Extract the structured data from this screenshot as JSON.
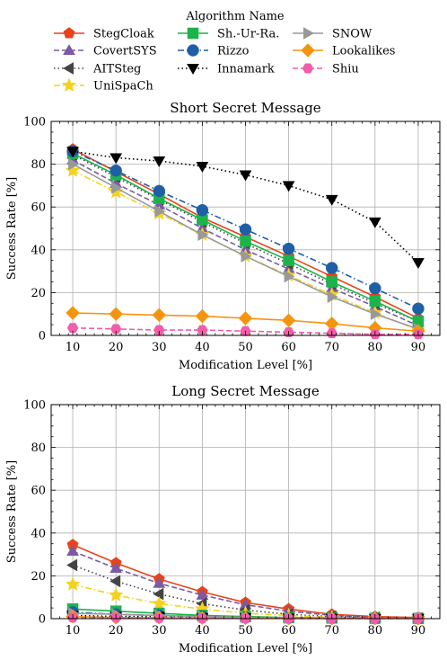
{
  "legend": {
    "title": "Algorithm Name",
    "placement": "top-center"
  },
  "chart_data": [
    {
      "type": "line",
      "title": "Short Secret Message",
      "xlabel": "Modification Level [%]",
      "ylabel": "Success Rate [%]",
      "x": [
        10,
        20,
        30,
        40,
        50,
        60,
        70,
        80,
        90
      ],
      "xlim": [
        5,
        95
      ],
      "ylim": [
        0,
        100
      ],
      "yticks": [
        0,
        20,
        40,
        60,
        80,
        100
      ],
      "grid": true,
      "series": [
        {
          "name": "StegCloak",
          "color": "#e8431a",
          "marker": "pentagon",
          "dash": "solid",
          "values": [
            87,
            76.5,
            66,
            55,
            46,
            37,
            27.5,
            18,
            8
          ]
        },
        {
          "name": "CovertSYS",
          "color": "#7b5aa6",
          "marker": "triangle-up",
          "dash": "6,3",
          "values": [
            82,
            71,
            61,
            50,
            40,
            31,
            22,
            13.5,
            4.5
          ]
        },
        {
          "name": "AITSteg",
          "color": "#444444",
          "marker": "triangle-left",
          "dash": "1.5,3",
          "values": [
            84.5,
            74,
            63.5,
            53,
            43,
            33.5,
            24,
            15,
            6.5
          ]
        },
        {
          "name": "UniSpaCh",
          "color": "#f5d21b",
          "marker": "star",
          "dash": "7,3,1.5,3",
          "values": [
            77,
            67,
            57,
            47,
            37,
            28,
            19,
            10.5,
            2.5
          ]
        },
        {
          "name": "Sh.-Ur-Ra.",
          "color": "#1cb34b",
          "marker": "square",
          "dash": "solid",
          "values": [
            85,
            75,
            64,
            54,
            44,
            35,
            25,
            16,
            6.5
          ]
        },
        {
          "name": "Rizzo",
          "color": "#1f5fa6",
          "marker": "circle",
          "dash": "7,3,1.5,3",
          "values": [
            86,
            77,
            67.5,
            58.5,
            49.5,
            40.5,
            31.5,
            22,
            12.5
          ]
        },
        {
          "name": "Innamark",
          "color": "#000000",
          "marker": "triangle-down",
          "dash": "1.5,3",
          "values": [
            86,
            83,
            81.5,
            79,
            75,
            70,
            63.5,
            53,
            34
          ]
        },
        {
          "name": "SNOW",
          "color": "#999999",
          "marker": "triangle-right",
          "dash": "solid",
          "values": [
            80,
            69,
            58,
            47,
            37,
            27.5,
            18,
            10,
            3
          ]
        },
        {
          "name": "Lookalikes",
          "color": "#f5950f",
          "marker": "diamond",
          "dash": "solid",
          "values": [
            10.5,
            10,
            9.5,
            9,
            8,
            7,
            5.5,
            3.5,
            2
          ]
        },
        {
          "name": "Shiu",
          "color": "#f25ca8",
          "marker": "hexagon",
          "dash": "6,3",
          "values": [
            3.5,
            3,
            2.5,
            2.5,
            2,
            1.5,
            1,
            0.5,
            0.5
          ]
        }
      ]
    },
    {
      "type": "line",
      "title": "Long Secret Message",
      "xlabel": "Modification Level [%]",
      "ylabel": "Success Rate [%]",
      "x": [
        10,
        20,
        30,
        40,
        50,
        60,
        70,
        80,
        90
      ],
      "xlim": [
        5,
        95
      ],
      "ylim": [
        0,
        100
      ],
      "yticks": [
        0,
        20,
        40,
        60,
        80,
        100
      ],
      "grid": true,
      "series": [
        {
          "name": "StegCloak",
          "color": "#e8431a",
          "marker": "pentagon",
          "dash": "solid",
          "values": [
            34.5,
            26,
            18.5,
            12.5,
            7.5,
            4.5,
            2,
            1,
            0.5
          ]
        },
        {
          "name": "CovertSYS",
          "color": "#7b5aa6",
          "marker": "triangle-up",
          "dash": "6,3",
          "values": [
            31.5,
            23.5,
            16.5,
            11,
            6.5,
            3.5,
            1.5,
            0.5,
            0.3
          ]
        },
        {
          "name": "AITSteg",
          "color": "#444444",
          "marker": "triangle-left",
          "dash": "1.5,3",
          "values": [
            25,
            17.5,
            11.5,
            7,
            4,
            2,
            1,
            0.5,
            0.2
          ]
        },
        {
          "name": "UniSpaCh",
          "color": "#f5d21b",
          "marker": "star",
          "dash": "7,3,1.5,3",
          "values": [
            16,
            11,
            7,
            4.5,
            2.5,
            1.5,
            0.5,
            0.3,
            0.1
          ]
        },
        {
          "name": "Sh.-Ur-Ra.",
          "color": "#1cb34b",
          "marker": "square",
          "dash": "solid",
          "values": [
            4.5,
            3.5,
            2.5,
            1.5,
            1,
            0.5,
            0.3,
            0.2,
            0.1
          ]
        },
        {
          "name": "Rizzo",
          "color": "#1f5fa6",
          "marker": "circle",
          "dash": "7,3,1.5,3",
          "values": [
            3,
            2,
            1.5,
            1,
            0.5,
            0.3,
            0.2,
            0.1,
            0.1
          ]
        },
        {
          "name": "Innamark",
          "color": "#000000",
          "marker": "triangle-down",
          "dash": "1.5,3",
          "values": [
            1.5,
            1,
            1,
            0.5,
            0.5,
            0.3,
            0.2,
            0.1,
            0.1
          ]
        },
        {
          "name": "SNOW",
          "color": "#999999",
          "marker": "triangle-right",
          "dash": "solid",
          "values": [
            2.5,
            2,
            1.5,
            1,
            0.5,
            0.3,
            0.2,
            0.1,
            0.1
          ]
        },
        {
          "name": "Lookalikes",
          "color": "#f5950f",
          "marker": "diamond",
          "dash": "solid",
          "values": [
            1,
            0.5,
            0.5,
            0.3,
            0.2,
            0.1,
            0.1,
            0.1,
            0
          ]
        },
        {
          "name": "Shiu",
          "color": "#f25ca8",
          "marker": "hexagon",
          "dash": "6,3",
          "values": [
            0.5,
            0.5,
            0.3,
            0.2,
            0.1,
            0.1,
            0,
            0,
            0
          ]
        }
      ]
    }
  ]
}
